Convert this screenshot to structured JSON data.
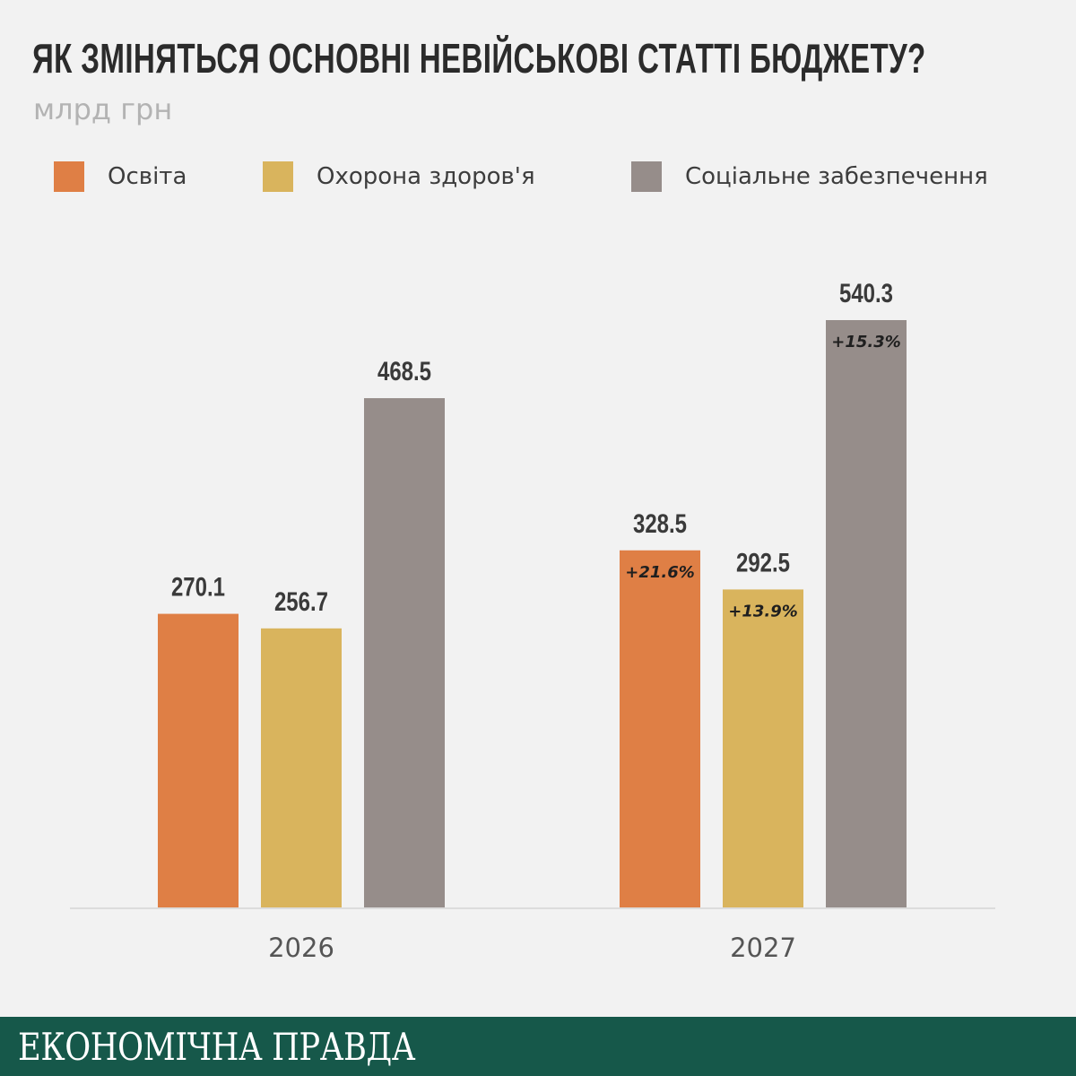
{
  "header": {
    "title": "ЯК ЗМІНЯТЬСЯ ОСНОВНІ НЕВІЙСЬКОВІ СТАТТІ БЮДЖЕТУ?",
    "subtitle": "млрд грн"
  },
  "legend": {
    "items": [
      {
        "label": "Освіта",
        "color": "#df7f45"
      },
      {
        "label": "Охорона здоров'я",
        "color": "#d9b45d"
      },
      {
        "label": "Соціальне забезпечення",
        "color": "#968d8a"
      }
    ]
  },
  "chart_data": {
    "type": "bar",
    "title": "ЯК ЗМІНЯТЬСЯ ОСНОВНІ НЕВІЙСЬКОВІ СТАТТІ БЮДЖЕТУ?",
    "subtitle": "млрд грн",
    "categories": [
      "2026",
      "2027"
    ],
    "series": [
      {
        "name": "Освіта",
        "color": "#df7f45",
        "values": [
          270.1,
          328.5
        ],
        "labels": [
          "270.1",
          "328.5"
        ],
        "changes": [
          "",
          "+21.6%"
        ]
      },
      {
        "name": "Охорона здоров'я",
        "color": "#d9b45d",
        "values": [
          256.7,
          292.5
        ],
        "labels": [
          "256.7",
          "292.5"
        ],
        "changes": [
          "",
          "+13.9%"
        ]
      },
      {
        "name": "Соціальне забезпечення",
        "color": "#968d8a",
        "values": [
          468.5,
          540.3
        ],
        "labels": [
          "468.5",
          "540.3"
        ],
        "changes": [
          "",
          "+15.3%"
        ]
      }
    ],
    "ylim": [
      0,
      540.3
    ],
    "grid": false,
    "legend": "top-left"
  },
  "footer": {
    "logo_text": "ЕКОНОМІЧНА ПРАВДА"
  }
}
